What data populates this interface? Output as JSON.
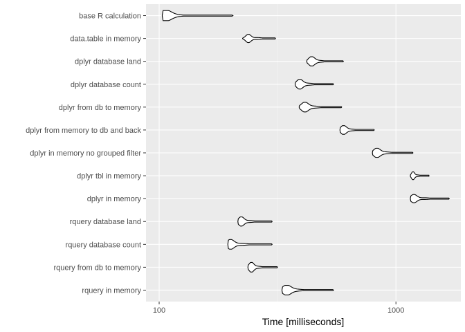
{
  "chart_data": {
    "type": "violin",
    "xlabel": "Time [milliseconds]",
    "ylabel": "",
    "x_scale": "log10",
    "xlim": [
      88,
      1880
    ],
    "x_ticks": [
      100,
      1000
    ],
    "x_tick_labels": [
      "100",
      "1000"
    ],
    "grid": true,
    "colors": {
      "panel": "#ebebeb",
      "grid_major": "#ffffff",
      "violin_fill": "#ffffff",
      "violin_stroke": "#000000"
    },
    "series": [
      {
        "name": "base R calculation",
        "min": 103,
        "median": 112,
        "max": 205,
        "mode": 106,
        "width": 0.22
      },
      {
        "name": "data.table in memory",
        "min": 225,
        "median": 260,
        "max": 310,
        "mode": 238,
        "width": 0.18
      },
      {
        "name": "dplyr database land",
        "min": 420,
        "median": 470,
        "max": 600,
        "mode": 440,
        "width": 0.2
      },
      {
        "name": "dplyr database count",
        "min": 375,
        "median": 425,
        "max": 545,
        "mode": 392,
        "width": 0.21
      },
      {
        "name": "dplyr from db to memory",
        "min": 390,
        "median": 450,
        "max": 590,
        "mode": 412,
        "width": 0.21
      },
      {
        "name": "dplyr from memory to db and back",
        "min": 580,
        "median": 640,
        "max": 810,
        "mode": 600,
        "width": 0.19
      },
      {
        "name": "dplyr in memory no grouped filter",
        "min": 795,
        "median": 900,
        "max": 1180,
        "mode": 830,
        "width": 0.2
      },
      {
        "name": "dplyr tbl in memory",
        "min": 1150,
        "median": 1230,
        "max": 1380,
        "mode": 1180,
        "width": 0.17
      },
      {
        "name": "dplyr in memory",
        "min": 1150,
        "median": 1320,
        "max": 1680,
        "mode": 1190,
        "width": 0.18
      },
      {
        "name": "rquery database land",
        "min": 215,
        "median": 240,
        "max": 300,
        "mode": 222,
        "width": 0.2
      },
      {
        "name": "rquery database count",
        "min": 195,
        "median": 222,
        "max": 300,
        "mode": 200,
        "width": 0.21
      },
      {
        "name": "rquery from db to memory",
        "min": 237,
        "median": 260,
        "max": 316,
        "mode": 245,
        "width": 0.21
      },
      {
        "name": "rquery in memory",
        "min": 330,
        "median": 375,
        "max": 545,
        "mode": 345,
        "width": 0.21
      }
    ]
  }
}
